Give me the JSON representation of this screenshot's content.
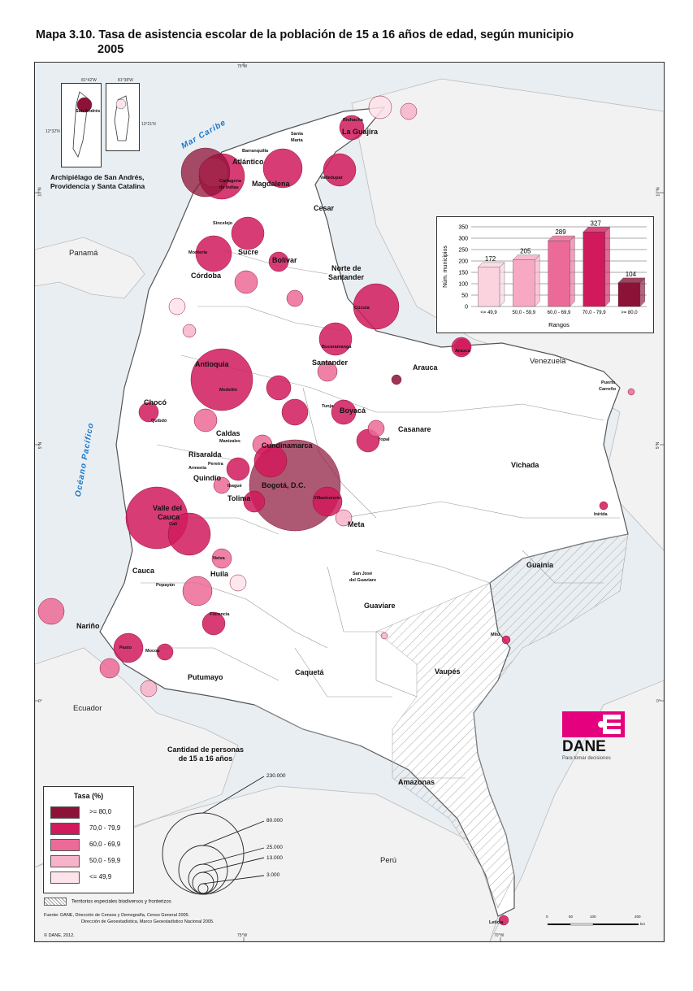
{
  "title": {
    "line1": "Mapa 3.10. Tasa de asistencia escolar de la población de 15 a 16 años de edad, según municipio",
    "line2": "2005"
  },
  "inset": {
    "title_line1": "Archipiélago de San Andrés,",
    "title_line2": "Providencia y Santa Catalina",
    "label_san_andres": "San Andrés",
    "coord_a": "81°42'W",
    "coord_b": "81°38'W",
    "coord_c": "12°32'N",
    "coord_d": "13°21'N"
  },
  "grid": {
    "lon_75": "75°W",
    "lon_70": "70°W",
    "lat_10": "10°N",
    "lat_5": "5°N",
    "lat_0": "0°"
  },
  "seas": {
    "caribe": "Mar Caribe",
    "pacifico": "Océano Pacífico"
  },
  "countries": {
    "panama": "Panamá",
    "venezuela": "Venezuela",
    "ecuador": "Ecuador",
    "peru": "Perú"
  },
  "departments": {
    "la_guajira": "La Guajira",
    "atlantico": "Atlántico",
    "magdalena": "Magdalena",
    "cesar": "Cesar",
    "sucre": "Sucre",
    "bolivar": "Bolívar",
    "cordoba": "Córdoba",
    "norte_santander_1": "Norte de",
    "norte_santander_2": "Santander",
    "antioquia": "Antioquia",
    "santander": "Santander",
    "arauca": "Arauca",
    "choco": "Chocó",
    "boyaca": "Boyacá",
    "casanare": "Casanare",
    "caldas": "Caldas",
    "risaralda": "Risaralda",
    "cundinamarca": "Cundinamarca",
    "quindio": "Quindío",
    "tolima": "Tolima",
    "bogota": "Bogotá, D.C.",
    "vichada": "Vichada",
    "valle_1": "Valle del",
    "valle_2": "Cauca",
    "meta": "Meta",
    "guainia": "Guainía",
    "cauca": "Cauca",
    "huila": "Huila",
    "guaviare": "Guaviare",
    "narino": "Nariño",
    "caqueta": "Caquetá",
    "vaupes": "Vaupés",
    "putumayo": "Putumayo",
    "amazonas": "Amazonas"
  },
  "cities": {
    "riohacha": "Riohacha",
    "santa_marta_1": "Santa",
    "santa_marta_2": "Marta",
    "barranquilla": "Barranquilla",
    "valledupar": "Valledupar",
    "cartagena_1": "Cartagena",
    "cartagena_2": "de Indias",
    "sincelejo": "Sincelejo",
    "monteria": "Montería",
    "cucuta": "Cúcuta",
    "bucaramanga": "Bucaramanga",
    "arauca_city": "Arauca",
    "medellin": "Medellín",
    "quibdo": "Quibdó",
    "tunja": "Tunja",
    "yopal": "Yopal",
    "manizales": "Manizales",
    "pereira": "Pereira",
    "armenia": "Armenia",
    "ibague": "Ibagué",
    "villavicencio": "Villavicencio",
    "puerto_carreno_1": "Puerto",
    "puerto_carreno_2": "Carreño",
    "cali": "Cali",
    "inirida": "Inírida",
    "neiva": "Neiva",
    "popayan": "Popayán",
    "san_jose_1": "San José",
    "san_jose_2": "del Guaviare",
    "florencia": "Florencia",
    "pasto": "Pasto",
    "mocoa": "Mocoa",
    "mitu": "Mitú",
    "leticia": "Leticia"
  },
  "chart_data": {
    "type": "bar",
    "categories": [
      "<= 49,9",
      "50,0 - 59,9",
      "60,0 - 69,9",
      "70,0 - 79,9",
      ">= 80,0"
    ],
    "values": [
      172,
      205,
      289,
      327,
      104
    ],
    "colors": [
      "#fbd3de",
      "#f7a9c4",
      "#ec6a97",
      "#d11a5c",
      "#8c1237"
    ],
    "xlabel": "Rangos",
    "ylabel": "Núm. municipios",
    "ylim": [
      0,
      350
    ],
    "yticks": [
      0,
      50,
      100,
      150,
      200,
      250,
      300,
      350
    ],
    "grid": true
  },
  "legend": {
    "title": "Tasa (%)",
    "items": [
      {
        "label": ">= 80,0",
        "color": "#8c1237"
      },
      {
        "label": "70,0 - 79,9",
        "color": "#d11a5c"
      },
      {
        "label": "60,0 - 69,9",
        "color": "#ec6a97"
      },
      {
        "label": "50,0 - 59,9",
        "color": "#f7b3ca"
      },
      {
        "label": "<= 49,9",
        "color": "#fde3ea"
      }
    ]
  },
  "size_legend": {
    "title_line1": "Cantidad de personas",
    "title_line2": "de 15 a 16 años",
    "values": [
      "230.000",
      "80.000",
      "25.000",
      "13.000",
      "3.000"
    ]
  },
  "territories_note": "Territorios especiales biodiversos y fronterizos",
  "source": {
    "line1": "Fuente: DANE, Dirección de Censos y Demografía, Censo General 2005.",
    "line2": "Dirección de Geoestadística, Marco Geoestadístico Nacional 2005."
  },
  "copyright": "© DANE, 2012.",
  "logo": {
    "name": "DANE",
    "tagline": "Para tomar decisiones"
  },
  "scale": {
    "ticks": [
      "0",
      "50",
      "100",
      "200"
    ],
    "unit": "km"
  },
  "colors": {
    "sea": "#e9eef2",
    "land": "#ffffff",
    "neighbour": "#f2f2f2",
    "accent": "#e5007e",
    "caribe_text": "#1877c9"
  }
}
